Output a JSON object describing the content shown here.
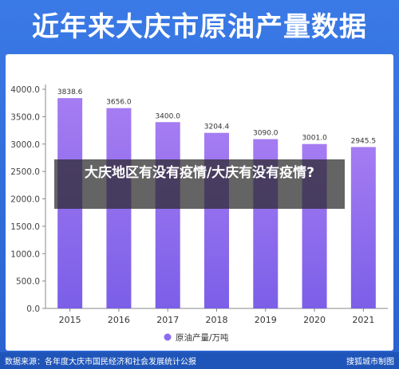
{
  "header": {
    "title": "近年来大庆市原油产量数据"
  },
  "overlay": {
    "text": "大庆地区有没有疫情/大庆有没有疫情?"
  },
  "footer": {
    "source": "数据来源：各年度大庆市国民经济和社会发展统计公报",
    "brand": "搜狐城市制图"
  },
  "colors": {
    "bar_top": "#a57cf2",
    "bar_bottom": "#7b5fe8",
    "background": "#2d6bd6",
    "legend_dot": "#8b6cf0"
  },
  "chart_data": {
    "type": "bar",
    "categories": [
      "2015",
      "2016",
      "2017",
      "2018",
      "2019",
      "2020",
      "2021"
    ],
    "series": [
      {
        "name": "原油产量/万吨",
        "values": [
          3838.6,
          3656.0,
          3400.0,
          3204.4,
          3090.0,
          3001.0,
          2945.5
        ]
      }
    ],
    "value_labels": [
      "3838.6",
      "3656.0",
      "3400.0",
      "3204.4",
      "3090.0",
      "3001.0",
      "2945.5"
    ],
    "yticks": [
      "0.0",
      "500.0",
      "1000.0",
      "1500.0",
      "2000.0",
      "2500.0",
      "3000.0",
      "3500.0",
      "4000.0"
    ],
    "ylim": [
      0,
      4000
    ],
    "legend_position": "bottom",
    "grid": false
  }
}
